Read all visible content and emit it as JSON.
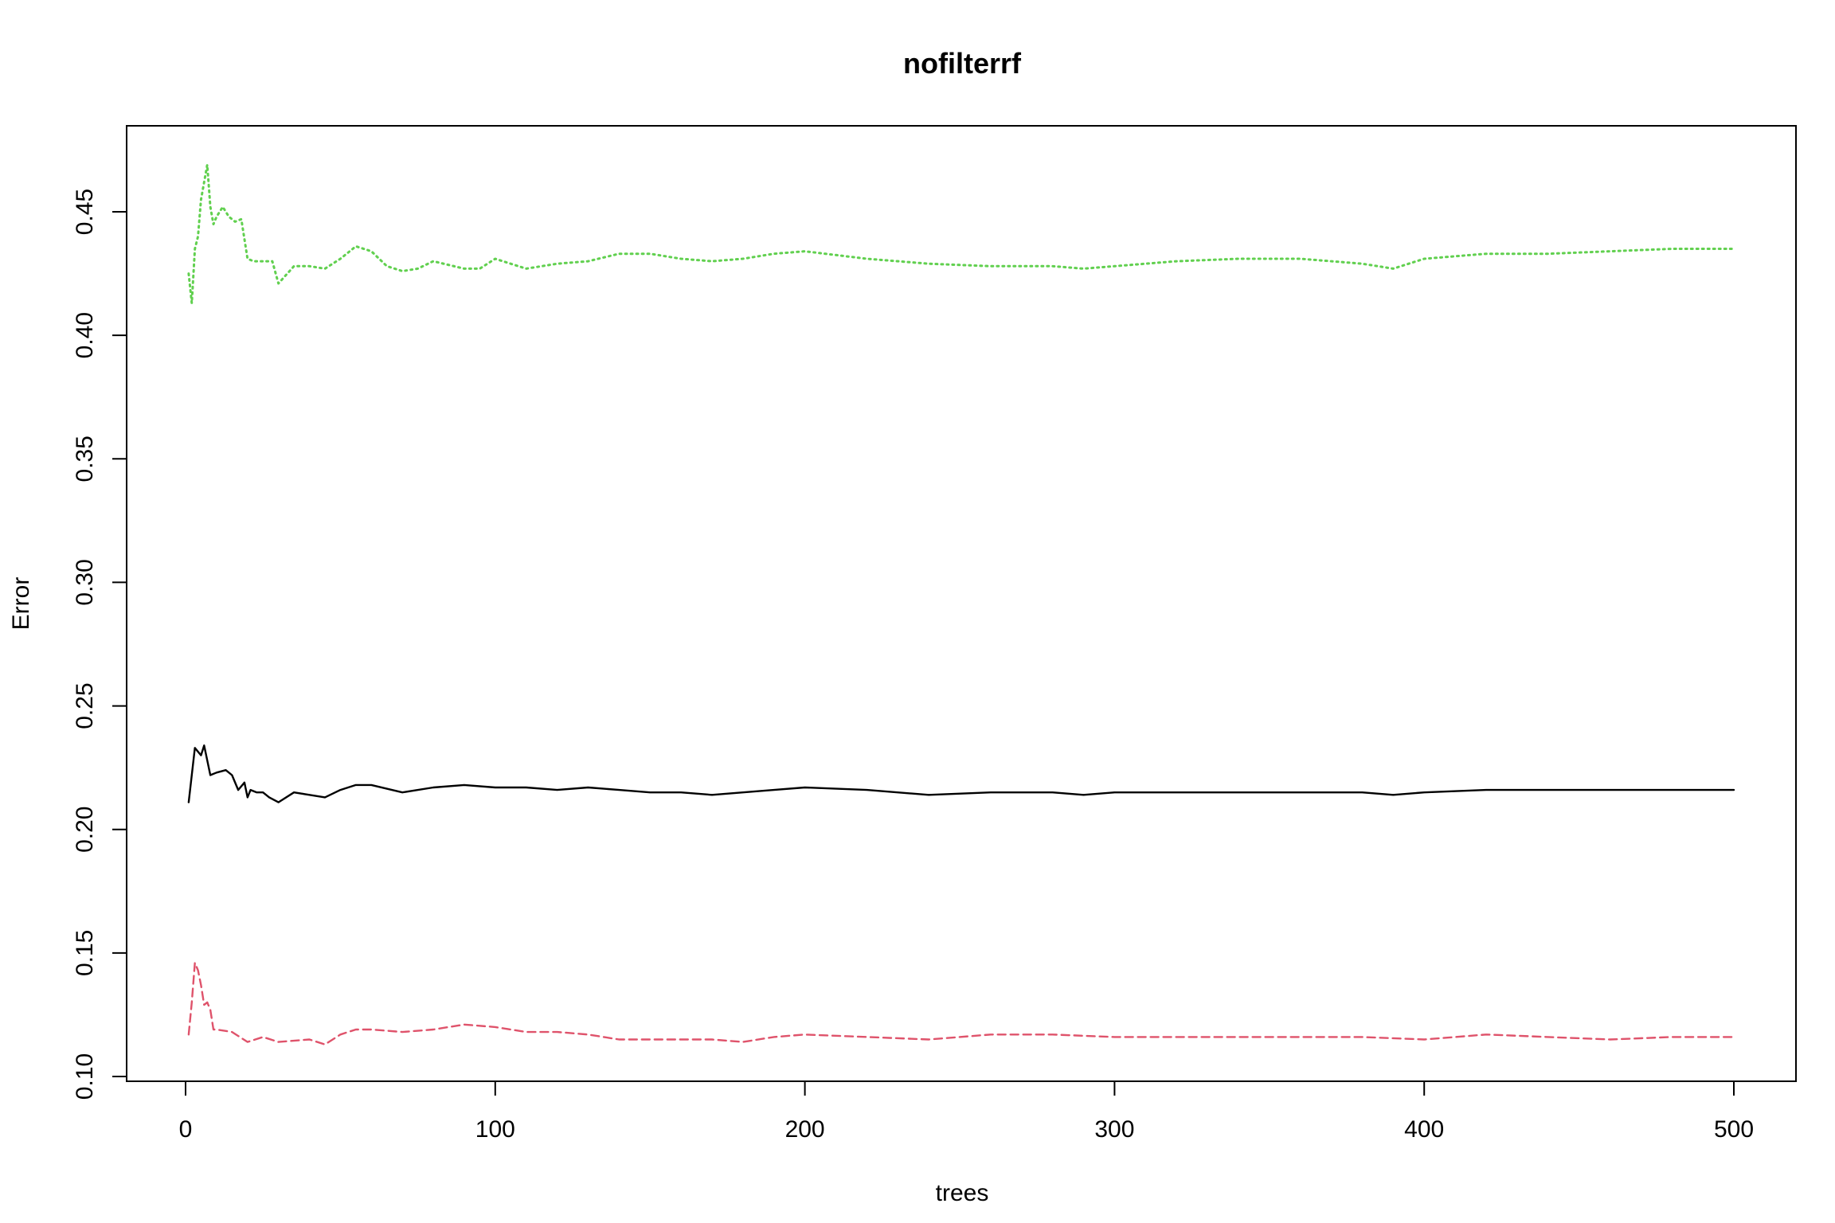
{
  "chart_data": {
    "type": "line",
    "title": "nofilterrf",
    "xlabel": "trees",
    "ylabel": "Error",
    "xlim": [
      0,
      500
    ],
    "ylim": [
      0.1,
      0.47
    ],
    "x_ticks": [
      "0",
      "100",
      "200",
      "300",
      "400",
      "500"
    ],
    "y_ticks": [
      "0.10",
      "0.15",
      "0.20",
      "0.25",
      "0.30",
      "0.35",
      "0.40",
      "0.45"
    ],
    "grid": false,
    "legend": "none",
    "series": [
      {
        "color": "#000000",
        "style": "solid",
        "x": [
          1,
          3,
          5,
          6,
          8,
          10,
          13,
          15,
          17,
          19,
          20,
          21,
          23,
          25,
          27,
          30,
          35,
          40,
          45,
          50,
          55,
          60,
          70,
          80,
          90,
          100,
          110,
          120,
          130,
          140,
          150,
          160,
          170,
          180,
          190,
          200,
          220,
          240,
          260,
          280,
          290,
          300,
          320,
          340,
          360,
          380,
          390,
          400,
          420,
          440,
          460,
          480,
          500
        ],
        "values": [
          0.211,
          0.233,
          0.23,
          0.234,
          0.222,
          0.223,
          0.224,
          0.222,
          0.216,
          0.219,
          0.213,
          0.216,
          0.215,
          0.215,
          0.213,
          0.211,
          0.215,
          0.214,
          0.213,
          0.216,
          0.218,
          0.218,
          0.215,
          0.217,
          0.218,
          0.217,
          0.217,
          0.216,
          0.217,
          0.216,
          0.215,
          0.215,
          0.214,
          0.215,
          0.216,
          0.217,
          0.216,
          0.214,
          0.215,
          0.215,
          0.214,
          0.215,
          0.215,
          0.215,
          0.215,
          0.215,
          0.214,
          0.215,
          0.216,
          0.216,
          0.216,
          0.216,
          0.216
        ]
      },
      {
        "color": "#df536b",
        "style": "dashed",
        "x": [
          1,
          2,
          3,
          4,
          5,
          6,
          7,
          8,
          9,
          10,
          15,
          20,
          25,
          30,
          40,
          45,
          50,
          55,
          60,
          70,
          80,
          90,
          100,
          110,
          120,
          130,
          140,
          150,
          160,
          170,
          180,
          190,
          200,
          220,
          240,
          260,
          280,
          300,
          320,
          340,
          360,
          380,
          400,
          420,
          440,
          460,
          480,
          500
        ],
        "values": [
          0.117,
          0.13,
          0.146,
          0.143,
          0.137,
          0.129,
          0.13,
          0.127,
          0.119,
          0.119,
          0.118,
          0.114,
          0.116,
          0.114,
          0.115,
          0.113,
          0.117,
          0.119,
          0.119,
          0.118,
          0.119,
          0.121,
          0.12,
          0.118,
          0.118,
          0.117,
          0.115,
          0.115,
          0.115,
          0.115,
          0.114,
          0.116,
          0.117,
          0.116,
          0.115,
          0.117,
          0.117,
          0.116,
          0.116,
          0.116,
          0.116,
          0.116,
          0.115,
          0.117,
          0.116,
          0.115,
          0.116,
          0.116
        ]
      },
      {
        "color": "#61d04f",
        "style": "dotted",
        "x": [
          1,
          2,
          3,
          4,
          5,
          6,
          7,
          8,
          9,
          10,
          12,
          14,
          16,
          18,
          20,
          22,
          25,
          28,
          30,
          35,
          40,
          45,
          50,
          55,
          60,
          65,
          70,
          75,
          80,
          90,
          95,
          100,
          110,
          120,
          130,
          140,
          150,
          160,
          170,
          180,
          190,
          200,
          220,
          240,
          260,
          280,
          290,
          300,
          320,
          340,
          360,
          380,
          390,
          400,
          420,
          440,
          460,
          480,
          500
        ],
        "values": [
          0.425,
          0.413,
          0.435,
          0.44,
          0.455,
          0.462,
          0.469,
          0.452,
          0.445,
          0.448,
          0.452,
          0.448,
          0.446,
          0.447,
          0.431,
          0.43,
          0.43,
          0.43,
          0.421,
          0.428,
          0.428,
          0.427,
          0.431,
          0.436,
          0.434,
          0.428,
          0.426,
          0.427,
          0.43,
          0.427,
          0.427,
          0.431,
          0.427,
          0.429,
          0.43,
          0.433,
          0.433,
          0.431,
          0.43,
          0.431,
          0.433,
          0.434,
          0.431,
          0.429,
          0.428,
          0.428,
          0.427,
          0.428,
          0.43,
          0.431,
          0.431,
          0.429,
          0.427,
          0.431,
          0.433,
          0.433,
          0.434,
          0.435,
          0.435
        ]
      }
    ]
  }
}
